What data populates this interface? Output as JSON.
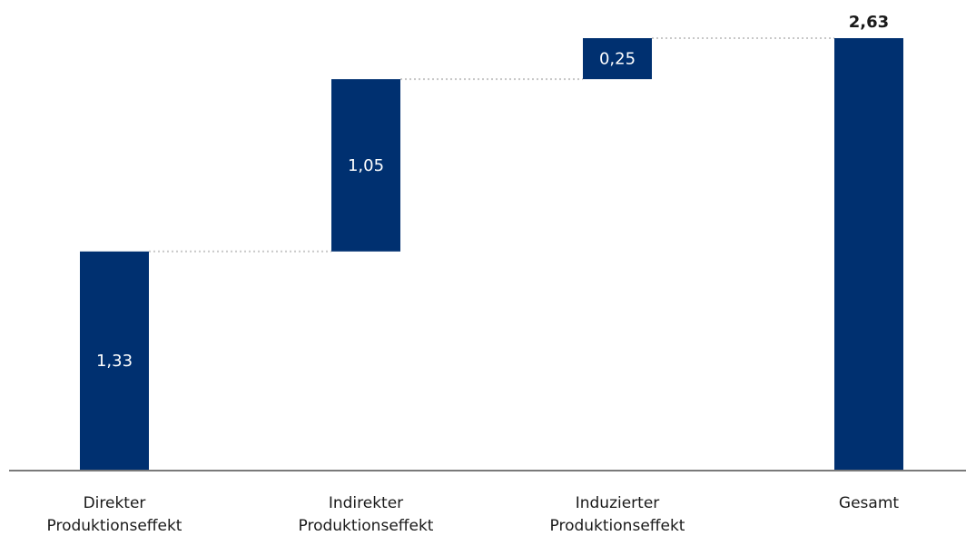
{
  "chart_data": {
    "type": "bar",
    "subtype": "waterfall",
    "categories": [
      [
        "Direkter",
        "Produktionseffekt"
      ],
      [
        "Indirekter",
        "Produktionseffekt"
      ],
      [
        "Induzierter",
        "Produktionseffekt"
      ],
      [
        "Gesamt"
      ]
    ],
    "values": [
      1.33,
      1.05,
      0.25,
      2.63
    ],
    "value_labels": [
      "1,33",
      "1,05",
      "0,25",
      "2,63"
    ],
    "total_index": 3,
    "title": "",
    "xlabel": "",
    "ylabel": "",
    "ylim": [
      0,
      2.63
    ],
    "grid": false,
    "connectors": "dotted",
    "colors": {
      "bar": "#003070",
      "connector": "#c8c8c8",
      "axis": "#7a7a7a",
      "inner_label": "#ffffff",
      "total_label": "#1a1a1a"
    }
  }
}
